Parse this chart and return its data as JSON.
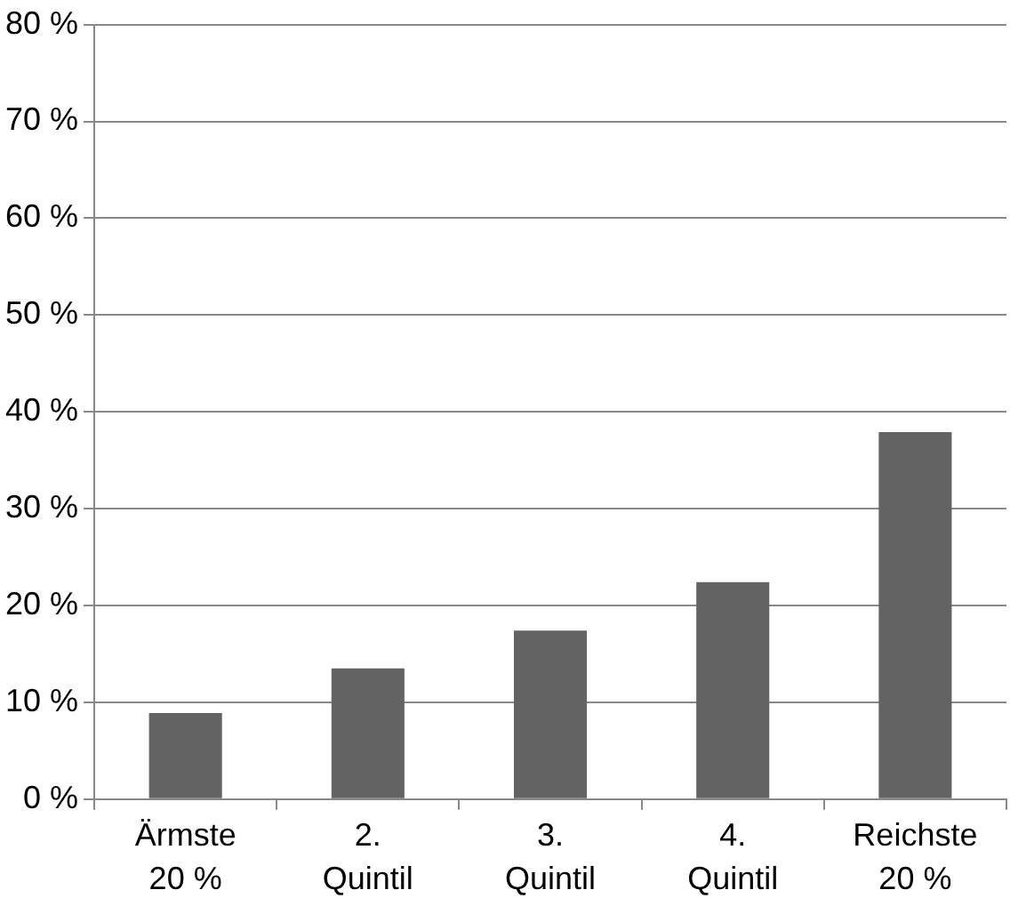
{
  "chart_data": {
    "type": "bar",
    "categories": [
      "Ärmste 20 %",
      "2. Quintil",
      "3. Quintil",
      "4. Quintil",
      "Reichste 20 %"
    ],
    "values": [
      8.9,
      13.5,
      17.4,
      22.4,
      37.9
    ],
    "color": "#636363",
    "ylim": [
      0,
      80
    ],
    "yticks": [
      {
        "value": 0,
        "label": "0 %"
      },
      {
        "value": 10,
        "label": "10 %"
      },
      {
        "value": 20,
        "label": "20 %"
      },
      {
        "value": 30,
        "label": "30 %"
      },
      {
        "value": 40,
        "label": "40 %"
      },
      {
        "value": 50,
        "label": "50 %"
      },
      {
        "value": 60,
        "label": "60 %"
      },
      {
        "value": 70,
        "label": "70 %"
      },
      {
        "value": 80,
        "label": "80 %"
      }
    ],
    "grid": "y",
    "legend": false
  }
}
